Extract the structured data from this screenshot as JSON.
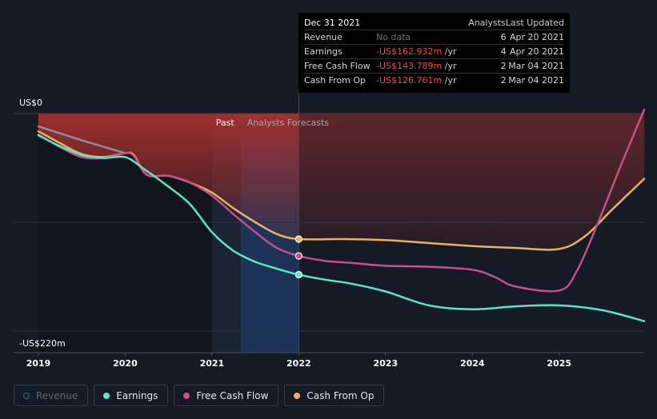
{
  "tooltip": {
    "date": "Dec 31 2021",
    "col_analysts": "Analysts",
    "col_last_updated": "Last Updated",
    "rows": [
      {
        "label": "Revenue",
        "value": "No data",
        "unit": "",
        "analysts": "6",
        "updated": "Apr 20 2021"
      },
      {
        "label": "Earnings",
        "value": "-US$162.932m",
        "unit": " /yr",
        "analysts": "4",
        "updated": "Apr 20 2021"
      },
      {
        "label": "Free Cash Flow",
        "value": "-US$143.789m",
        "unit": " /yr",
        "analysts": "2",
        "updated": "Mar 04 2021"
      },
      {
        "label": "Cash From Op",
        "value": "-US$126.761m",
        "unit": " /yr",
        "analysts": "2",
        "updated": "Mar 04 2021"
      }
    ]
  },
  "legend": {
    "revenue": "Revenue",
    "earnings": "Earnings",
    "fcf": "Free Cash Flow",
    "cfo": "Cash From Op"
  },
  "chart_data": {
    "type": "line",
    "title": "",
    "ylabel_top": "US$0",
    "ylabel_bottom": "-US$220m",
    "ylim": [
      -220,
      0
    ],
    "xlim": [
      2019.0,
      2025.98
    ],
    "x_ticks": [
      "2019",
      "2020",
      "2021",
      "2022",
      "2023",
      "2024",
      "2025"
    ],
    "x_tick_values": [
      2019,
      2020,
      2021,
      2022,
      2023,
      2024,
      2025
    ],
    "past_label": "Past",
    "forecast_label": "Analysts Forecasts",
    "past_band": [
      2021.0,
      2021.33
    ],
    "forecast_band": [
      2021.33,
      2022.0
    ],
    "highlight_x": 2022.0,
    "colors": {
      "earnings": "#58e6c7",
      "fcf": "#c94d8c",
      "cfo": "#e9b25f",
      "revenue_gray": "#8b8f96",
      "area": "#a8302f",
      "background": "#151b25"
    },
    "series": [
      {
        "name": "Revenue",
        "color": "#2e6a8a",
        "points": []
      },
      {
        "name": "Earnings",
        "color": "#58e6c7",
        "points": [
          [
            2019.0,
            -22
          ],
          [
            2019.25,
            -33
          ],
          [
            2019.5,
            -42
          ],
          [
            2019.75,
            -45
          ],
          [
            2020.0,
            -44
          ],
          [
            2020.2,
            -55
          ],
          [
            2020.5,
            -74
          ],
          [
            2020.75,
            -92
          ],
          [
            2021.0,
            -120
          ],
          [
            2021.25,
            -139
          ],
          [
            2021.5,
            -150
          ],
          [
            2021.75,
            -157
          ],
          [
            2022.0,
            -163
          ],
          [
            2022.3,
            -168
          ],
          [
            2022.6,
            -172
          ],
          [
            2023.0,
            -180
          ],
          [
            2023.5,
            -194
          ],
          [
            2024.0,
            -198
          ],
          [
            2024.5,
            -195
          ],
          [
            2025.0,
            -194
          ],
          [
            2025.5,
            -199
          ],
          [
            2025.98,
            -210
          ]
        ]
      },
      {
        "name": "Free Cash Flow",
        "color": "#c94d8c",
        "points": [
          [
            2019.0,
            -21
          ],
          [
            2019.25,
            -34
          ],
          [
            2019.5,
            -44
          ],
          [
            2019.75,
            -45
          ],
          [
            2020.0,
            -40
          ],
          [
            2020.1,
            -43
          ],
          [
            2020.25,
            -62
          ],
          [
            2020.5,
            -63
          ],
          [
            2020.75,
            -70
          ],
          [
            2021.0,
            -83
          ],
          [
            2021.25,
            -102
          ],
          [
            2021.5,
            -120
          ],
          [
            2021.75,
            -136
          ],
          [
            2022.0,
            -144
          ],
          [
            2022.3,
            -149
          ],
          [
            2022.6,
            -151
          ],
          [
            2023.0,
            -154
          ],
          [
            2023.5,
            -155
          ],
          [
            2024.0,
            -158
          ],
          [
            2024.25,
            -165
          ],
          [
            2024.5,
            -175
          ],
          [
            2025.0,
            -179
          ],
          [
            2025.2,
            -160
          ],
          [
            2025.45,
            -110
          ],
          [
            2025.7,
            -55
          ],
          [
            2025.98,
            4
          ]
        ]
      },
      {
        "name": "Cash From Op",
        "color": "#e9b25f",
        "points": [
          [
            2019.0,
            -18
          ],
          [
            2019.25,
            -30
          ],
          [
            2019.5,
            -41
          ],
          [
            2019.75,
            -44
          ],
          [
            2020.0,
            -40
          ],
          [
            2020.1,
            -42
          ],
          [
            2020.25,
            -62
          ],
          [
            2020.5,
            -63
          ],
          [
            2020.75,
            -70
          ],
          [
            2021.0,
            -80
          ],
          [
            2021.25,
            -96
          ],
          [
            2021.5,
            -110
          ],
          [
            2021.75,
            -122
          ],
          [
            2022.0,
            -127
          ],
          [
            2022.5,
            -127
          ],
          [
            2023.0,
            -128
          ],
          [
            2023.5,
            -131
          ],
          [
            2024.0,
            -134
          ],
          [
            2024.5,
            -136
          ],
          [
            2025.0,
            -137
          ],
          [
            2025.3,
            -124
          ],
          [
            2025.6,
            -98
          ],
          [
            2025.98,
            -66
          ]
        ]
      },
      {
        "name": "Past reference",
        "color": "#8b8f96",
        "points": [
          [
            2019.0,
            -13
          ],
          [
            2019.5,
            -27
          ],
          [
            2020.0,
            -40
          ]
        ]
      }
    ]
  }
}
